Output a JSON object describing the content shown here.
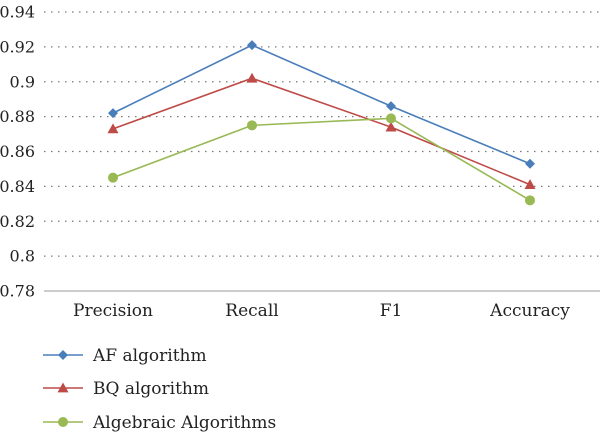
{
  "chart_data": {
    "type": "line",
    "categories": [
      "Precision",
      "Recall",
      "F1",
      "Accuracy"
    ],
    "series": [
      {
        "name": "AF algorithm",
        "values": [
          0.882,
          0.921,
          0.886,
          0.853
        ],
        "color": "#4a7ebb",
        "marker": "diamond"
      },
      {
        "name": "BQ algorithm",
        "values": [
          0.873,
          0.902,
          0.874,
          0.841
        ],
        "color": "#be4b48",
        "marker": "triangle"
      },
      {
        "name": "Algebraic Algorithms",
        "values": [
          0.845,
          0.875,
          0.879,
          0.832
        ],
        "color": "#98b954",
        "marker": "circle"
      }
    ],
    "ylim": [
      0.78,
      0.94
    ],
    "yticks": [
      "0.78",
      "0.8",
      "0.82",
      "0.84",
      "0.86",
      "0.88",
      "0.9",
      "0.92",
      "0.94"
    ],
    "grid": true,
    "legend_position": "bottom-left"
  }
}
